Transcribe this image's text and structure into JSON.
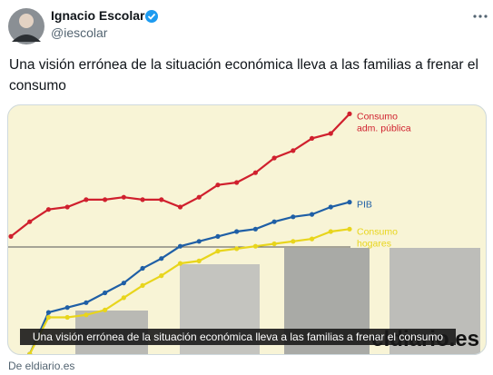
{
  "tweet": {
    "author": "Ignacio Escolar",
    "handle": "@iescolar",
    "text": "Una visión errónea de la situación económica lleva a las familias a frenar el consumo",
    "card": {
      "caption": "Una visión errónea de la situación económica lleva a las familias a frenar el consumo",
      "logo": "eldiario.es",
      "source": "De eldiario.es"
    }
  },
  "chart_data": {
    "type": "line",
    "x": [
      0,
      1,
      2,
      3,
      4,
      5,
      6,
      7,
      8,
      9,
      10,
      11,
      12,
      13,
      14,
      15,
      16,
      17,
      18
    ],
    "xlim": [
      0,
      18
    ],
    "ylim": [
      0,
      100
    ],
    "series": [
      {
        "name": [
          "Consumo",
          "adm. pública"
        ],
        "color": "#d0202e",
        "values": [
          48,
          54,
          59,
          60,
          63,
          63,
          64,
          63,
          63,
          60,
          64,
          69,
          70,
          74,
          80,
          83,
          88,
          90,
          98
        ]
      },
      {
        "name": [
          "PIB"
        ],
        "color": "#1f5fa6",
        "values": [
          null,
          0,
          17,
          19,
          21,
          25,
          29,
          35,
          39,
          44,
          46,
          48,
          50,
          51,
          54,
          56,
          57,
          60,
          62
        ]
      },
      {
        "name": [
          "Consumo",
          "hogares"
        ],
        "color": "#e8d51c",
        "values": [
          null,
          0,
          15,
          15,
          16,
          18,
          23,
          28,
          32,
          37,
          38,
          42,
          43,
          44,
          45,
          46,
          47,
          50,
          51
        ]
      }
    ]
  }
}
